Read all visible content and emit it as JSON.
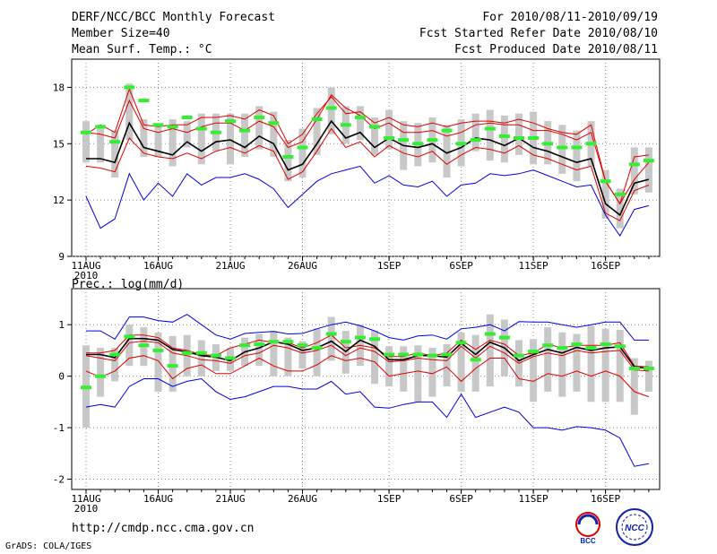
{
  "header": {
    "title": "DERF/NCC/BCC Monthly Forecast",
    "member_size": "Member Size=40",
    "variable1": "Mean Surf. Temp.: °C",
    "period": "For 2010/08/11-2010/09/19",
    "fcst_started": "Fcst Started Refer Date 2010/08/10",
    "fcst_produced": "Fcst Produced Date 2010/08/11"
  },
  "footer": {
    "url": "http://cmdp.ncc.cma.gov.cn",
    "grads": "GrADS: COLA/IGES",
    "logo_bcc": "BCC",
    "logo_ncc": "NCC"
  },
  "colors": {
    "mean": "#000000",
    "spread": "#dd0000",
    "extreme": "#0000dd",
    "box": "#c8c8c8",
    "marker": "#33ee33",
    "grid": "#888888"
  },
  "chart_data": [
    {
      "type": "line",
      "title": "Mean Surf. Temp.: °C",
      "ylim": [
        9,
        19.5
      ],
      "yticks": [
        9,
        12,
        15,
        18
      ],
      "ytick_labels": [
        "9",
        "12",
        "15",
        "18"
      ],
      "xtick_labels": [
        "11AUG\n2010",
        "16AUG",
        "21AUG",
        "26AUG",
        "1SEP",
        "6SEP",
        "11SEP",
        "16SEP"
      ],
      "xtick_index": [
        0,
        5,
        10,
        15,
        21,
        26,
        31,
        36
      ],
      "n_days": 40,
      "series": [
        {
          "name": "max",
          "values": [
            12.2,
            10.5,
            11.0,
            13.4,
            12.0,
            12.9,
            12.2,
            13.4,
            12.8,
            13.2,
            13.2,
            13.4,
            13.1,
            12.6,
            11.6,
            12.3,
            13.0,
            13.4,
            13.6,
            13.8,
            12.9,
            13.3,
            12.8,
            12.7,
            13.0,
            12.2,
            12.8,
            12.9,
            13.4,
            13.3,
            13.4,
            13.6,
            13.3,
            13.0,
            12.7,
            12.8,
            11.2,
            10.1,
            11.5,
            11.7
          ]
        },
        {
          "name": "p_high",
          "values": [
            15.6,
            15.5,
            15.3,
            17.3,
            15.8,
            15.6,
            15.8,
            15.6,
            15.9,
            16.1,
            16.1,
            15.7,
            16.2,
            15.9,
            14.8,
            15.1,
            16.3,
            17.6,
            16.9,
            16.5,
            15.8,
            16.1,
            15.6,
            15.6,
            15.7,
            15.4,
            15.6,
            16.0,
            16.1,
            16.0,
            16.0,
            15.7,
            15.7,
            15.5,
            15.2,
            15.6,
            13.0,
            11.8,
            13.1,
            14.0
          ]
        },
        {
          "name": "mean",
          "values": [
            14.2,
            14.2,
            14.0,
            16.1,
            14.8,
            14.6,
            14.4,
            15.1,
            14.6,
            15.1,
            15.2,
            14.8,
            15.4,
            15.0,
            13.6,
            13.9,
            15.0,
            16.2,
            15.3,
            15.6,
            14.8,
            15.3,
            14.9,
            14.8,
            15.0,
            14.5,
            14.8,
            15.3,
            15.2,
            14.9,
            15.3,
            14.8,
            14.6,
            14.3,
            14.0,
            14.2,
            11.8,
            11.2,
            12.9,
            13.1
          ]
        },
        {
          "name": "p_low",
          "values": [
            13.8,
            13.7,
            13.5,
            15.3,
            14.5,
            14.3,
            14.2,
            14.5,
            14.2,
            14.6,
            14.8,
            14.5,
            14.9,
            14.6,
            13.1,
            13.5,
            14.6,
            15.8,
            14.8,
            15.1,
            14.3,
            14.9,
            14.5,
            14.3,
            14.6,
            13.9,
            14.4,
            14.8,
            14.7,
            14.5,
            14.9,
            14.4,
            14.2,
            13.9,
            13.6,
            13.8,
            11.3,
            10.9,
            12.5,
            12.8
          ]
        },
        {
          "name": "min",
          "values": [
            15.5,
            16.0,
            15.6,
            17.9,
            16.0,
            15.9,
            16.0,
            16.0,
            16.4,
            16.4,
            16.5,
            16.3,
            16.8,
            16.5,
            15.0,
            15.5,
            16.6,
            17.5,
            16.6,
            16.7,
            16.1,
            16.4,
            16.0,
            15.9,
            16.1,
            15.9,
            16.1,
            16.2,
            16.2,
            16.1,
            16.3,
            16.1,
            15.8,
            15.6,
            15.5,
            16.0,
            13.0,
            11.8,
            14.3,
            14.4
          ]
        }
      ],
      "box_top": [
        16.2,
        15.8,
        15.7,
        18.2,
        16.3,
        16.0,
        16.3,
        16.2,
        16.6,
        16.6,
        16.6,
        16.6,
        17.0,
        16.7,
        15.2,
        15.8,
        16.9,
        18.0,
        17.0,
        17.0,
        16.4,
        16.8,
        16.2,
        16.1,
        16.4,
        16.0,
        16.3,
        16.6,
        16.8,
        16.5,
        16.6,
        16.7,
        16.2,
        16.0,
        15.7,
        16.2,
        13.6,
        12.6,
        14.8,
        14.8
      ],
      "box_bottom": [
        14.0,
        14.0,
        13.2,
        15.2,
        14.3,
        14.3,
        13.8,
        14.8,
        13.9,
        14.6,
        13.9,
        14.3,
        14.7,
        14.3,
        13.0,
        13.2,
        14.4,
        15.5,
        15.0,
        15.2,
        14.4,
        14.7,
        13.6,
        13.8,
        14.0,
        13.2,
        13.8,
        14.6,
        14.1,
        14.0,
        14.4,
        13.9,
        13.9,
        13.4,
        13.0,
        13.8,
        11.0,
        10.5,
        12.3,
        12.4
      ],
      "markers": [
        15.6,
        15.9,
        15.1,
        18.0,
        17.3,
        16.0,
        15.9,
        16.4,
        15.8,
        15.6,
        16.2,
        15.7,
        16.4,
        16.1,
        14.3,
        14.8,
        16.3,
        16.9,
        16.0,
        16.4,
        15.9,
        15.3,
        15.2,
        15.0,
        15.2,
        15.7,
        15.0,
        15.2,
        15.8,
        15.4,
        15.3,
        15.3,
        15.0,
        14.8,
        14.8,
        15.0,
        13.0,
        12.3,
        13.9,
        14.1
      ]
    },
    {
      "type": "line",
      "title": "Prec.: log(mm/d)",
      "ylim": [
        -2.2,
        1.7
      ],
      "yticks": [
        -2,
        -1,
        0,
        1
      ],
      "ytick_labels": [
        "-2",
        "-1",
        "0",
        "1"
      ],
      "xtick_labels": [
        "11AUG\n2010",
        "16AUG",
        "21AUG",
        "26AUG",
        "1SEP",
        "6SEP",
        "11SEP",
        "16SEP"
      ],
      "xtick_index": [
        0,
        5,
        10,
        15,
        21,
        26,
        31,
        36
      ],
      "n_days": 40,
      "series": [
        {
          "name": "max",
          "values": [
            0.88,
            0.88,
            0.72,
            1.15,
            1.15,
            1.08,
            1.05,
            1.2,
            1.0,
            0.8,
            0.72,
            0.83,
            0.85,
            0.87,
            0.82,
            0.83,
            0.92,
            1.0,
            1.05,
            0.98,
            0.88,
            0.75,
            0.7,
            0.78,
            0.8,
            0.72,
            0.92,
            0.95,
            1.0,
            0.88,
            1.06,
            1.05,
            1.05,
            1.0,
            0.95,
            1.0,
            1.05,
            1.05,
            0.7,
            0.7
          ]
        },
        {
          "name": "p_high",
          "values": [
            0.45,
            0.45,
            0.5,
            0.8,
            0.8,
            0.75,
            0.55,
            0.5,
            0.42,
            0.4,
            0.55,
            0.62,
            0.7,
            0.65,
            0.65,
            0.55,
            0.65,
            0.8,
            0.55,
            0.6,
            0.55,
            0.38,
            0.38,
            0.45,
            0.4,
            0.45,
            0.7,
            0.52,
            0.7,
            0.62,
            0.4,
            0.45,
            0.62,
            0.55,
            0.6,
            0.6,
            0.6,
            0.65,
            0.2,
            0.18
          ]
        },
        {
          "name": "mean",
          "values": [
            0.42,
            0.42,
            0.36,
            0.73,
            0.73,
            0.7,
            0.52,
            0.47,
            0.4,
            0.37,
            0.3,
            0.47,
            0.55,
            0.67,
            0.62,
            0.5,
            0.55,
            0.68,
            0.48,
            0.7,
            0.58,
            0.32,
            0.32,
            0.4,
            0.4,
            0.37,
            0.64,
            0.42,
            0.66,
            0.55,
            0.3,
            0.42,
            0.52,
            0.45,
            0.56,
            0.5,
            0.55,
            0.57,
            0.18,
            0.15
          ]
        },
        {
          "name": "p_low",
          "values": [
            0.4,
            0.35,
            0.3,
            0.65,
            0.68,
            0.65,
            0.45,
            0.4,
            0.32,
            0.3,
            0.25,
            0.4,
            0.45,
            0.6,
            0.55,
            0.45,
            0.5,
            0.6,
            0.4,
            0.55,
            0.48,
            0.28,
            0.3,
            0.35,
            0.32,
            0.3,
            0.58,
            0.35,
            0.58,
            0.45,
            0.25,
            0.38,
            0.45,
            0.4,
            0.5,
            0.45,
            0.48,
            0.5,
            0.12,
            0.1
          ]
        },
        {
          "name": "min",
          "values": [
            0.1,
            -0.02,
            0.1,
            0.35,
            0.4,
            0.3,
            -0.05,
            0.15,
            0.22,
            0.05,
            0.05,
            0.2,
            0.35,
            0.2,
            0.1,
            0.1,
            0.22,
            0.4,
            0.3,
            0.35,
            0.28,
            0.0,
            0.05,
            0.1,
            0.05,
            0.18,
            -0.1,
            0.15,
            0.35,
            0.35,
            -0.05,
            -0.1,
            0.05,
            0.0,
            0.1,
            0.0,
            0.1,
            0.0,
            -0.3,
            -0.4
          ]
        },
        {
          "name": "low_ext",
          "values": [
            -0.6,
            -0.55,
            -0.6,
            -0.2,
            -0.05,
            -0.05,
            -0.2,
            -0.1,
            -0.05,
            -0.3,
            -0.45,
            -0.4,
            -0.3,
            -0.2,
            -0.2,
            -0.25,
            -0.25,
            -0.1,
            -0.35,
            -0.3,
            -0.6,
            -0.62,
            -0.55,
            -0.5,
            -0.5,
            -0.8,
            -0.35,
            -0.8,
            -0.7,
            -0.6,
            -0.7,
            -1.0,
            -1.0,
            -1.05,
            -0.98,
            -1.0,
            -1.05,
            -1.2,
            -1.75,
            -1.7
          ]
        }
      ],
      "box_top": [
        0.6,
        0.55,
        0.55,
        1.0,
        0.95,
        0.85,
        0.78,
        0.8,
        0.7,
        0.62,
        0.55,
        0.75,
        0.82,
        0.88,
        0.75,
        0.68,
        0.92,
        1.15,
        0.88,
        1.0,
        0.88,
        0.58,
        0.58,
        0.6,
        0.55,
        0.62,
        0.85,
        0.8,
        1.2,
        1.1,
        0.7,
        0.72,
        0.95,
        0.85,
        0.82,
        0.98,
        0.92,
        0.9,
        0.35,
        0.3
      ],
      "box_bottom": [
        -1.0,
        -0.4,
        -0.1,
        0.2,
        0.2,
        -0.3,
        -0.3,
        0.0,
        0.0,
        0.1,
        0.1,
        0.2,
        0.2,
        0.0,
        0.0,
        0.15,
        0.0,
        0.3,
        0.05,
        0.2,
        -0.15,
        -0.2,
        -0.3,
        -0.5,
        -0.4,
        -0.2,
        -0.3,
        -0.3,
        -0.2,
        0.0,
        -0.2,
        -0.5,
        -0.3,
        -0.4,
        -0.3,
        -0.5,
        -0.5,
        -0.5,
        -0.75,
        -0.3
      ],
      "markers": [
        -0.22,
        0.0,
        0.42,
        0.77,
        0.6,
        0.5,
        0.2,
        0.45,
        0.45,
        0.4,
        0.35,
        0.6,
        0.62,
        0.67,
        0.67,
        0.6,
        0.55,
        0.82,
        0.67,
        0.75,
        0.72,
        0.42,
        0.42,
        0.42,
        0.4,
        0.42,
        0.65,
        0.32,
        0.82,
        0.75,
        0.4,
        0.48,
        0.6,
        0.55,
        0.62,
        0.55,
        0.62,
        0.58,
        0.15,
        0.15
      ]
    }
  ]
}
